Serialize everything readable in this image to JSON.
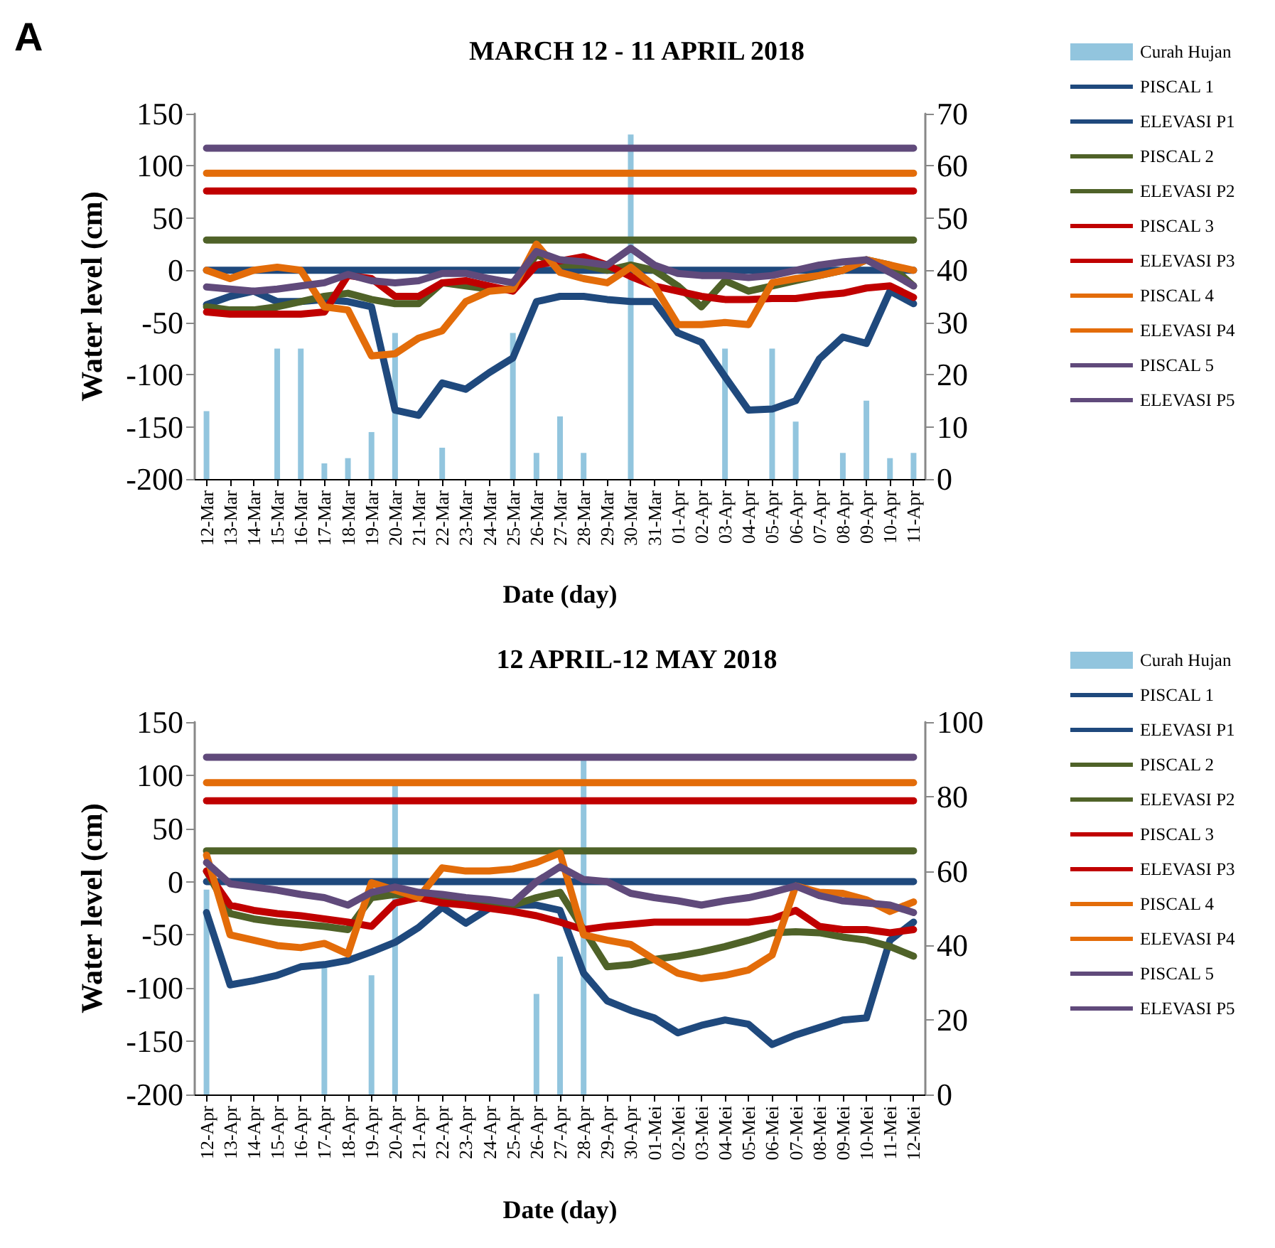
{
  "chart_data": [
    {
      "type": "line",
      "title": "MARCH 12 - 11 APRIL 2018",
      "xlabel": "Date (day)",
      "ylabel": "Water level (cm)",
      "annotations": [
        "A"
      ],
      "categories": [
        "12-Mar",
        "13-Mar",
        "14-Mar",
        "15-Mar",
        "16-Mar",
        "17-Mar",
        "18-Mar",
        "19-Mar",
        "20-Mar",
        "21-Mar",
        "22-Mar",
        "23-Mar",
        "24-Mar",
        "25-Mar",
        "26-Mar",
        "27-Mar",
        "28-Mar",
        "29-Mar",
        "30-Mar",
        "31-Mar",
        "01-Apr",
        "02-Apr",
        "03-Apr",
        "04-Apr",
        "05-Apr",
        "06-Apr",
        "07-Apr",
        "08-Apr",
        "09-Apr",
        "10-Apr",
        "11-Apr"
      ],
      "series": [
        {
          "name": "Curah Hujan",
          "type": "bar",
          "axis": "y2",
          "color": "#92c5de",
          "values": [
            13,
            0,
            0,
            25,
            25,
            3,
            4,
            9,
            28,
            0,
            6,
            0,
            0,
            28,
            5,
            12,
            5,
            0,
            66,
            0,
            0,
            0,
            25,
            0,
            25,
            11,
            0,
            5,
            15,
            4,
            5
          ]
        },
        {
          "name": "PISCAL 1",
          "color": "#1f497d",
          "values": [
            -33,
            -25,
            -20,
            -30,
            -30,
            -28,
            -30,
            -35,
            -134,
            -139,
            -108,
            -114,
            -98,
            -84,
            -30,
            -25,
            -25,
            -28,
            -30,
            -30,
            -60,
            -69,
            -102,
            -134,
            -133,
            -125,
            -85,
            -64,
            -70,
            -20,
            -32
          ]
        },
        {
          "name": "ELEVASI P1",
          "color": "#1f497d",
          "values": [
            0,
            0,
            0,
            0,
            0,
            0,
            0,
            0,
            0,
            0,
            0,
            0,
            0,
            0,
            0,
            0,
            0,
            0,
            0,
            0,
            0,
            0,
            0,
            0,
            0,
            0,
            0,
            0,
            0,
            0,
            0
          ]
        },
        {
          "name": "PISCAL 2",
          "color": "#4f6228",
          "values": [
            -35,
            -38,
            -38,
            -35,
            -30,
            -25,
            -22,
            -28,
            -32,
            -32,
            -12,
            -15,
            -18,
            -18,
            15,
            5,
            5,
            0,
            5,
            0,
            -15,
            -35,
            -10,
            -20,
            -15,
            -10,
            -5,
            0,
            10,
            5,
            -15
          ]
        },
        {
          "name": "ELEVASI P2",
          "color": "#4f6228",
          "values": [
            29,
            29,
            29,
            29,
            29,
            29,
            29,
            29,
            29,
            29,
            29,
            29,
            29,
            29,
            29,
            29,
            29,
            29,
            29,
            29,
            29,
            29,
            29,
            29,
            29,
            29,
            29,
            29,
            29,
            29,
            29
          ]
        },
        {
          "name": "PISCAL 3",
          "color": "#c00000",
          "values": [
            -40,
            -42,
            -42,
            -42,
            -42,
            -40,
            -5,
            -8,
            -25,
            -25,
            -12,
            -10,
            -15,
            -20,
            5,
            9,
            13,
            5,
            -6,
            -15,
            -20,
            -25,
            -28,
            -28,
            -27,
            -27,
            -24,
            -22,
            -17,
            -15,
            -26
          ]
        },
        {
          "name": "ELEVASI P3",
          "color": "#c00000",
          "values": [
            76,
            76,
            76,
            76,
            76,
            76,
            76,
            76,
            76,
            76,
            76,
            76,
            76,
            76,
            76,
            76,
            76,
            76,
            76,
            76,
            76,
            76,
            76,
            76,
            76,
            76,
            76,
            76,
            76,
            76,
            76
          ]
        },
        {
          "name": "PISCAL 4",
          "color": "#e36c09",
          "values": [
            0,
            -8,
            0,
            3,
            0,
            -35,
            -38,
            -82,
            -80,
            -65,
            -58,
            -30,
            -20,
            -18,
            25,
            -2,
            -8,
            -12,
            3,
            -15,
            -52,
            -52,
            -50,
            -52,
            -12,
            -8,
            -5,
            0,
            10,
            5,
            0
          ]
        },
        {
          "name": "ELEVASI P4",
          "color": "#e36c09",
          "values": [
            93,
            93,
            93,
            93,
            93,
            93,
            93,
            93,
            93,
            93,
            93,
            93,
            93,
            93,
            93,
            93,
            93,
            93,
            93,
            93,
            93,
            93,
            93,
            93,
            93,
            93,
            93,
            93,
            93,
            93,
            93
          ]
        },
        {
          "name": "PISCAL 5",
          "color": "#604a7b",
          "values": [
            -16,
            -18,
            -20,
            -18,
            -15,
            -12,
            -4,
            -10,
            -12,
            -10,
            -3,
            -3,
            -8,
            -12,
            18,
            10,
            8,
            5,
            21,
            5,
            -3,
            -5,
            -5,
            -7,
            -5,
            0,
            5,
            8,
            10,
            -2,
            -15
          ]
        },
        {
          "name": "ELEVASI P5",
          "color": "#604a7b",
          "values": [
            117,
            117,
            117,
            117,
            117,
            117,
            117,
            117,
            117,
            117,
            117,
            117,
            117,
            117,
            117,
            117,
            117,
            117,
            117,
            117,
            117,
            117,
            117,
            117,
            117,
            117,
            117,
            117,
            117,
            117,
            117
          ]
        }
      ],
      "ylim": [
        -200,
        150
      ],
      "yticks": [
        -200,
        -150,
        -100,
        -50,
        0,
        50,
        100,
        150
      ],
      "y2lim": [
        0,
        70
      ],
      "y2ticks": [
        0,
        10,
        20,
        30,
        40,
        50,
        60,
        70
      ],
      "legend": "right",
      "grid": false,
      "marker": "none",
      "line_style": "solid"
    },
    {
      "type": "line",
      "title": "12 APRIL-12 MAY 2018",
      "xlabel": "Date (day)",
      "ylabel": "Water level (cm)",
      "categories": [
        "12-Apr",
        "13-Apr",
        "14-Apr",
        "15-Apr",
        "16-Apr",
        "17-Apr",
        "18-Apr",
        "19-Apr",
        "20-Apr",
        "21-Apr",
        "22-Apr",
        "23-Apr",
        "24-Apr",
        "25-Apr",
        "26-Apr",
        "27-Apr",
        "28-Apr",
        "29-Apr",
        "30-Apr",
        "01-Mei",
        "02-Mei",
        "03-Mei",
        "04-Mei",
        "05-Mei",
        "06-Mei",
        "07-Mei",
        "08-Mei",
        "09-Mei",
        "10-Mei",
        "11-Mei",
        "12-Mei"
      ],
      "series": [
        {
          "name": "Curah Hujan",
          "type": "bar",
          "axis": "y2",
          "color": "#92c5de",
          "values": [
            55,
            0,
            0,
            0,
            0,
            34,
            0,
            32,
            83,
            0,
            0,
            0,
            0,
            0,
            27,
            37,
            90,
            0,
            0,
            0,
            0,
            0,
            0,
            0,
            0,
            0,
            0,
            0,
            0,
            0,
            0
          ]
        },
        {
          "name": "PISCAL 1",
          "color": "#1f497d",
          "values": [
            -29,
            -97,
            -93,
            -88,
            -80,
            -78,
            -74,
            -66,
            -57,
            -43,
            -24,
            -39,
            -25,
            -22,
            -22,
            -27,
            -86,
            -112,
            -121,
            -128,
            -142,
            -135,
            -130,
            -134,
            -153,
            -144,
            -137,
            -130,
            -128,
            -55,
            -38
          ]
        },
        {
          "name": "ELEVASI P1",
          "color": "#1f497d",
          "values": [
            0,
            0,
            0,
            0,
            0,
            0,
            0,
            0,
            0,
            0,
            0,
            0,
            0,
            0,
            0,
            0,
            0,
            0,
            0,
            0,
            0,
            0,
            0,
            0,
            0,
            0,
            0,
            0,
            0,
            0,
            0
          ]
        },
        {
          "name": "PISCAL 2",
          "color": "#4f6228",
          "values": [
            10,
            -30,
            -35,
            -38,
            -40,
            -42,
            -45,
            -15,
            -12,
            -15,
            -18,
            -20,
            -20,
            -22,
            -15,
            -10,
            -45,
            -80,
            -78,
            -73,
            -70,
            -66,
            -61,
            -55,
            -48,
            -47,
            -48,
            -52,
            -55,
            -61,
            -70
          ]
        },
        {
          "name": "ELEVASI P2",
          "color": "#4f6228",
          "values": [
            29,
            29,
            29,
            29,
            29,
            29,
            29,
            29,
            29,
            29,
            29,
            29,
            29,
            29,
            29,
            29,
            29,
            29,
            29,
            29,
            29,
            29,
            29,
            29,
            29,
            29,
            29,
            29,
            29,
            29,
            29
          ]
        },
        {
          "name": "PISCAL 3",
          "color": "#c00000",
          "values": [
            10,
            -22,
            -27,
            -30,
            -32,
            -35,
            -38,
            -42,
            -20,
            -15,
            -20,
            -22,
            -25,
            -28,
            -32,
            -38,
            -45,
            -42,
            -40,
            -38,
            -38,
            -38,
            -38,
            -38,
            -35,
            -27,
            -42,
            -45,
            -45,
            -48,
            -45
          ]
        },
        {
          "name": "ELEVASI P3",
          "color": "#c00000",
          "values": [
            76,
            76,
            76,
            76,
            76,
            76,
            76,
            76,
            76,
            76,
            76,
            76,
            76,
            76,
            76,
            76,
            76,
            76,
            76,
            76,
            76,
            76,
            76,
            76,
            76,
            76,
            76,
            76,
            76,
            76,
            76
          ]
        },
        {
          "name": "PISCAL 4",
          "color": "#e36c09",
          "values": [
            25,
            -50,
            -55,
            -60,
            -62,
            -58,
            -68,
            -1,
            -8,
            -15,
            13,
            10,
            10,
            12,
            18,
            27,
            -50,
            -55,
            -59,
            -73,
            -86,
            -91,
            -88,
            -83,
            -69,
            -4,
            -10,
            -11,
            -17,
            -28,
            -19
          ]
        },
        {
          "name": "ELEVASI P4",
          "color": "#e36c09",
          "values": [
            93,
            93,
            93,
            93,
            93,
            93,
            93,
            93,
            93,
            93,
            93,
            93,
            93,
            93,
            93,
            93,
            93,
            93,
            93,
            93,
            93,
            93,
            93,
            93,
            93,
            93,
            93,
            93,
            93,
            93,
            93
          ]
        },
        {
          "name": "PISCAL 5",
          "color": "#604a7b",
          "values": [
            18,
            -2,
            -5,
            -8,
            -12,
            -15,
            -22,
            -10,
            -5,
            -10,
            -12,
            -15,
            -17,
            -20,
            0,
            14,
            2,
            0,
            -11,
            -15,
            -18,
            -22,
            -18,
            -15,
            -10,
            -4,
            -13,
            -18,
            -20,
            -22,
            -29
          ]
        },
        {
          "name": "ELEVASI P5",
          "color": "#604a7b",
          "values": [
            117,
            117,
            117,
            117,
            117,
            117,
            117,
            117,
            117,
            117,
            117,
            117,
            117,
            117,
            117,
            117,
            117,
            117,
            117,
            117,
            117,
            117,
            117,
            117,
            117,
            117,
            117,
            117,
            117,
            117,
            117
          ]
        }
      ],
      "ylim": [
        -200,
        150
      ],
      "yticks": [
        -200,
        -150,
        -100,
        -50,
        0,
        50,
        100,
        150
      ],
      "y2lim": [
        0,
        100
      ],
      "y2ticks": [
        0,
        20,
        40,
        60,
        80,
        100
      ],
      "legend": "right",
      "grid": false,
      "marker": "none",
      "line_style": "solid"
    }
  ]
}
